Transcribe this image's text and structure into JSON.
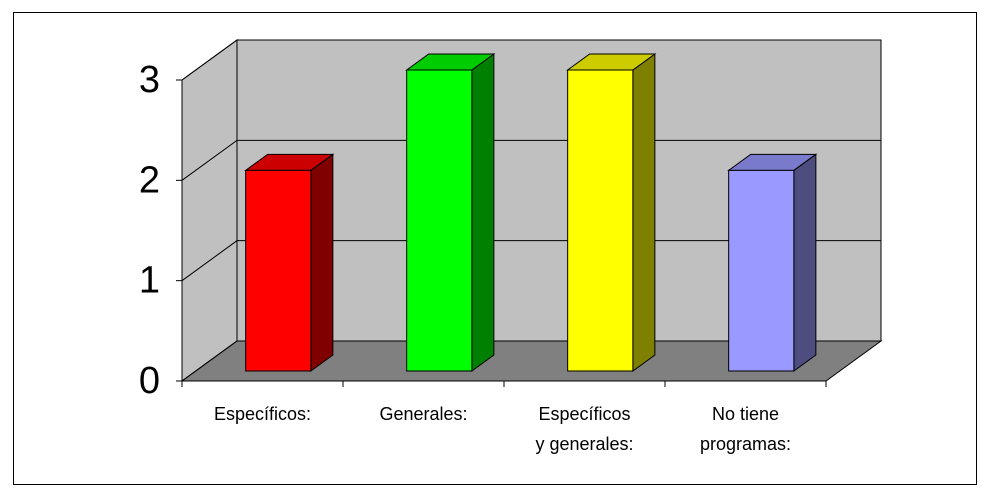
{
  "chart_data": {
    "type": "bar3d",
    "categories": [
      "Específicos:",
      "Generales:",
      "Específicos\ny generales:",
      "No tiene\nprogramas:"
    ],
    "values": [
      2,
      3,
      3,
      2
    ],
    "colors": [
      "#ff0000",
      "#00ff00",
      "#ffff00",
      "#9999ff"
    ],
    "ylim": [
      0,
      3
    ],
    "yticks": [
      0,
      1,
      2,
      3
    ],
    "grid": true
  }
}
